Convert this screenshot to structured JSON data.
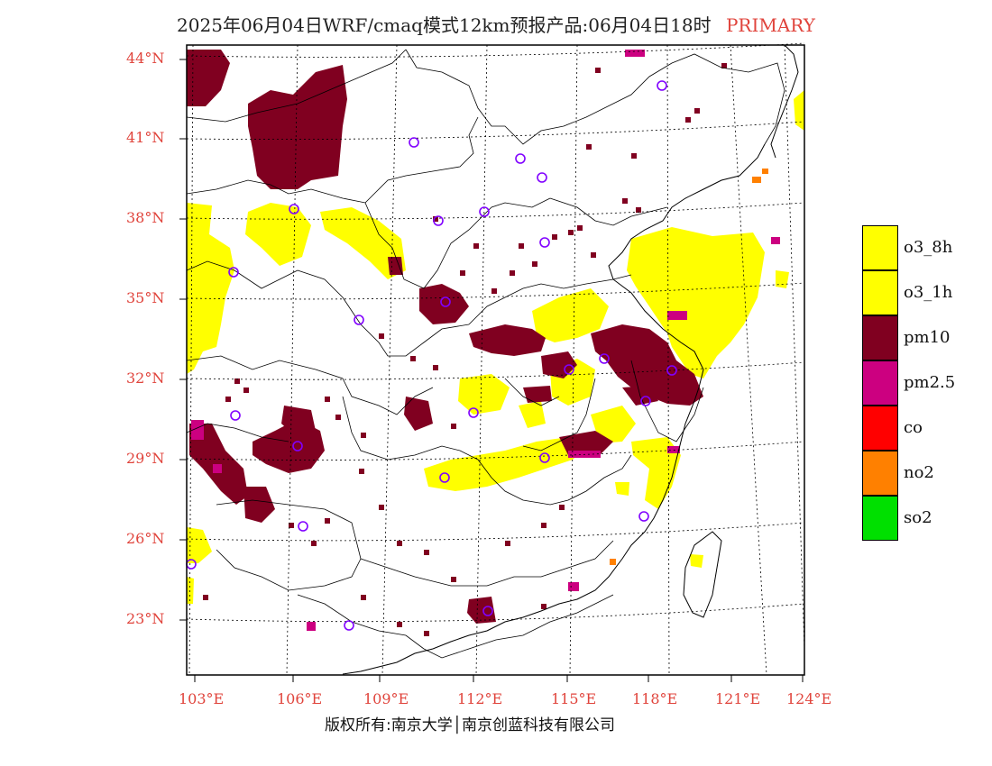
{
  "title": {
    "main": "2025年06月04日WRF/cmaq模式12km预报产品:06月04日18时",
    "tag": "PRIMARY"
  },
  "lat_labels": [
    "44°N",
    "41°N",
    "38°N",
    "35°N",
    "32°N",
    "29°N",
    "26°N",
    "23°N"
  ],
  "lon_labels": [
    "103°E",
    "106°E",
    "109°E",
    "112°E",
    "115°E",
    "118°E",
    "121°E",
    "124°E"
  ],
  "legend": [
    {
      "label": "o3_8h",
      "color": "#ffff00"
    },
    {
      "label": "o3_1h",
      "color": "#ffff00"
    },
    {
      "label": "pm10",
      "color": "#800020"
    },
    {
      "label": "pm2.5",
      "color": "#cc0080"
    },
    {
      "label": "co",
      "color": "#ff0000"
    },
    {
      "label": "no2",
      "color": "#ff8000"
    },
    {
      "label": "so2",
      "color": "#00e000"
    }
  ],
  "copyright": "版权所有:南京大学│南京创蓝科技有限公司"
}
